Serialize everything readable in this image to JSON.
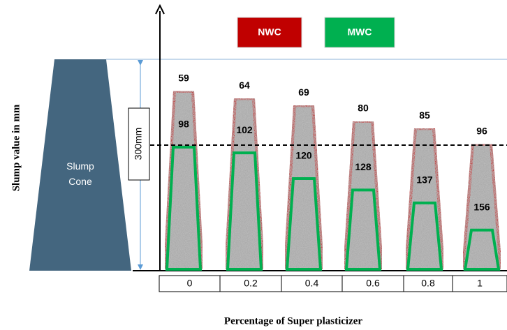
{
  "chart_data": {
    "type": "cone",
    "y_label": "Slump value in mm",
    "x_label": "Percentage of Super plasticizer",
    "annotations": {
      "cone": "Slump Cone",
      "height": "300mm"
    },
    "categories": [
      "0",
      "0.2",
      "0.4",
      "0.6",
      "0.8",
      "1"
    ],
    "series": [
      {
        "name": "NWC",
        "color": "#c00000",
        "values": [
          59,
          64,
          69,
          80,
          85,
          96
        ]
      },
      {
        "name": "MWC",
        "color": "#00b050",
        "values": [
          98,
          102,
          120,
          128,
          137,
          156
        ]
      }
    ]
  }
}
